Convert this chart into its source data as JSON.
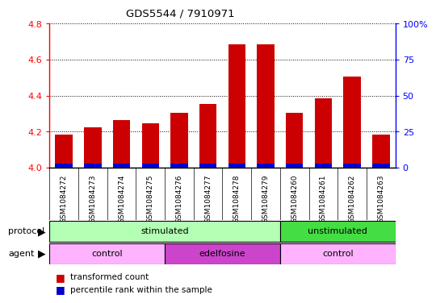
{
  "title": "GDS5544 / 7910971",
  "samples": [
    "GSM1084272",
    "GSM1084273",
    "GSM1084274",
    "GSM1084275",
    "GSM1084276",
    "GSM1084277",
    "GSM1084278",
    "GSM1084279",
    "GSM1084260",
    "GSM1084261",
    "GSM1084262",
    "GSM1084263"
  ],
  "transformed_count": [
    4.185,
    4.225,
    4.265,
    4.245,
    4.305,
    4.355,
    4.685,
    4.685,
    4.305,
    4.385,
    4.505,
    4.185
  ],
  "percentile_rank_height": [
    0.022,
    0.022,
    0.022,
    0.022,
    0.022,
    0.022,
    0.022,
    0.022,
    0.022,
    0.022,
    0.022,
    0.022
  ],
  "baseline": 4.0,
  "ylim_left": [
    4.0,
    4.8
  ],
  "ylim_right": [
    0,
    100
  ],
  "yticks_left": [
    4.0,
    4.2,
    4.4,
    4.6,
    4.8
  ],
  "yticks_right": [
    0,
    25,
    50,
    75,
    100
  ],
  "ytick_labels_right": [
    "0",
    "25",
    "50",
    "75",
    "100%"
  ],
  "bar_color_red": "#cc0000",
  "bar_color_blue": "#0000cc",
  "bar_width": 0.6,
  "xlim": [
    -0.5,
    11.5
  ],
  "protocol_stim_color": "#b3ffb3",
  "protocol_unstim_color": "#44dd44",
  "agent_control_color": "#ffb3ff",
  "agent_edelfosine_color": "#cc44cc",
  "sample_bg_color": "#cccccc",
  "legend_red_label": "transformed count",
  "legend_blue_label": "percentile rank within the sample",
  "plot_bg_color": "#ffffff"
}
